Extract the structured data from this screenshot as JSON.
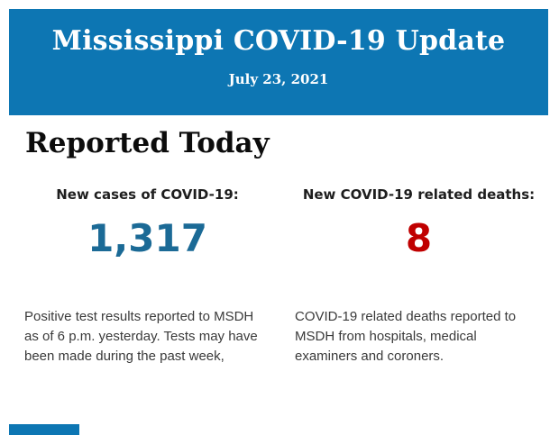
{
  "banner": {
    "title": "Mississippi COVID-19 Update",
    "date": "July 23, 2021",
    "background": "#0d76b3",
    "text_color": "#ffffff"
  },
  "section": {
    "heading": "Reported Today"
  },
  "stats": [
    {
      "label": "New cases of COVID-19:",
      "value": "1,317",
      "value_color": "#1b6a96",
      "description": "Positive test results reported to MSDH as of 6 p.m. yesterday. Tests may have been made during the past week,"
    },
    {
      "label": "New COVID-19 related deaths:",
      "value": "8",
      "value_color": "#c00000",
      "description": "COVID-19 related deaths reported to MSDH from hospitals, medical examiners and coroners."
    }
  ],
  "footer": {
    "next_section_color": "#0d76b3"
  }
}
